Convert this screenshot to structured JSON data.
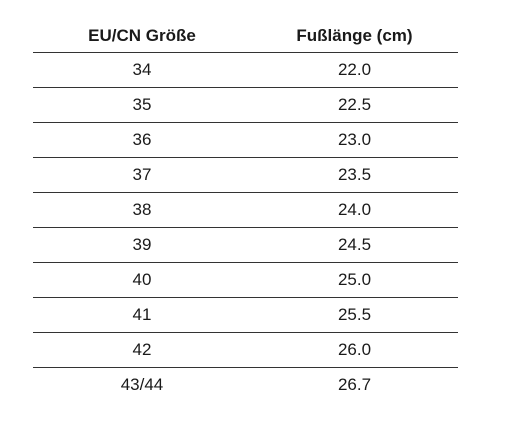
{
  "table": {
    "headers": [
      "EU/CN Größe",
      "Fußlänge (cm)"
    ],
    "rows": [
      [
        "34",
        "22.0"
      ],
      [
        "35",
        "22.5"
      ],
      [
        "36",
        "23.0"
      ],
      [
        "37",
        "23.5"
      ],
      [
        "38",
        "24.0"
      ],
      [
        "39",
        "24.5"
      ],
      [
        "40",
        "25.0"
      ],
      [
        "41",
        "25.5"
      ],
      [
        "42",
        "26.0"
      ],
      [
        "43/44",
        "26.7"
      ]
    ]
  }
}
